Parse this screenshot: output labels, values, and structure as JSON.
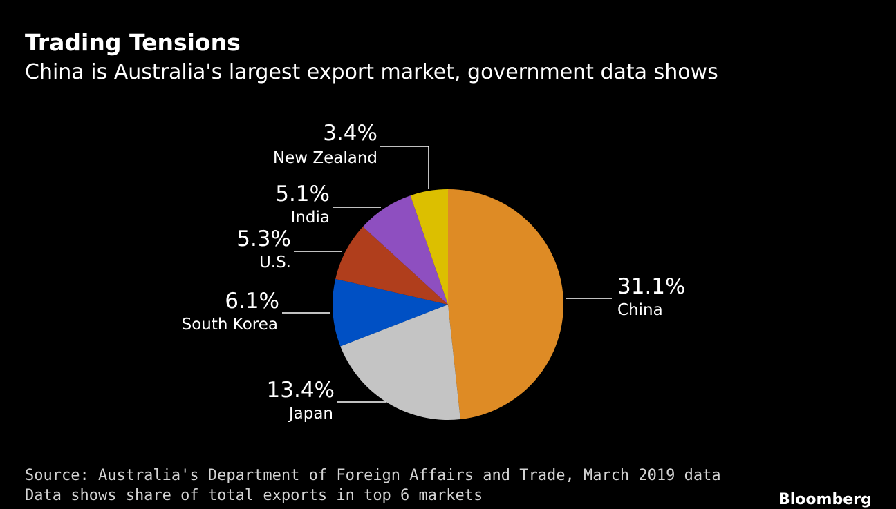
{
  "header": {
    "title": "Trading Tensions",
    "subtitle": "China is Australia's largest export market, government data shows"
  },
  "chart_data": {
    "type": "pie",
    "categories": [
      "China",
      "Japan",
      "South Korea",
      "U.S.",
      "India",
      "New Zealand"
    ],
    "values": [
      31.1,
      13.4,
      6.1,
      5.3,
      5.1,
      3.4
    ],
    "value_labels": [
      "31.1%",
      "13.4%",
      "6.1%",
      "5.3%",
      "5.1%",
      "3.4%"
    ],
    "colors": [
      "#de8b25",
      "#c4c4c4",
      "#0050c4",
      "#b03e1c",
      "#8e4fc0",
      "#dcbf00"
    ],
    "start": "12 o'clock",
    "direction": "clockwise",
    "legend": "none"
  },
  "footer": {
    "source": "Source: Australia's Department of Foreign Affairs and Trade, March 2019 data",
    "note": "Data shows share of total exports in top 6 markets",
    "brand": "Bloomberg"
  }
}
